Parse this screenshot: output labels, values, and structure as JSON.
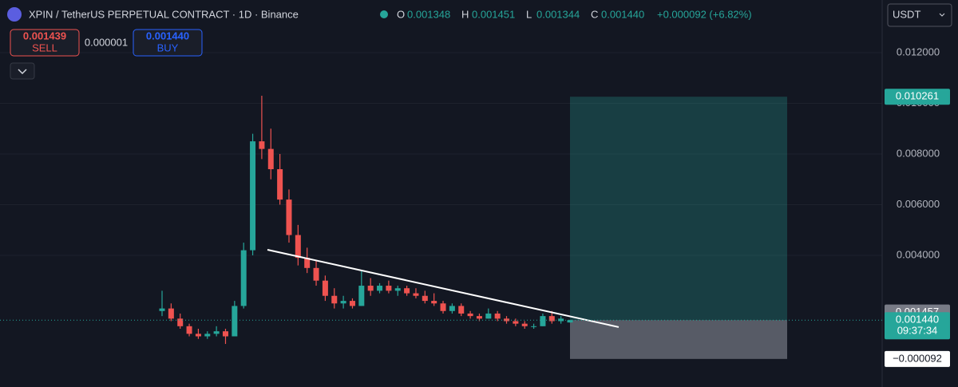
{
  "toolbar": {
    "title": "XPIN / TetherUS PERPETUAL CONTRACT · 1D · Binance",
    "ohlc": [
      {
        "key": "O",
        "value": "0.001348"
      },
      {
        "key": "H",
        "value": "0.001451"
      },
      {
        "key": "L",
        "value": "0.001344"
      },
      {
        "key": "C",
        "value": "0.001440"
      }
    ],
    "change": "+0.000092 (+6.82%)",
    "sell": {
      "price": "0.001439",
      "label": "SELL"
    },
    "spread": "0.000001",
    "buy": {
      "price": "0.001440",
      "label": "BUY"
    },
    "currency": "USDT"
  },
  "chart_data": {
    "type": "candlestick",
    "open": [
      0.0018,
      0.0019,
      0.0015,
      0.0012,
      0.0009,
      0.0008,
      0.0009,
      0.001,
      0.0008,
      0.002,
      0.0042,
      0.0085,
      0.0082,
      0.0074,
      0.0062,
      0.0048,
      0.0039,
      0.0035,
      0.003,
      0.0024,
      0.0021,
      0.0022,
      0.002,
      0.0028,
      0.0026,
      0.0028,
      0.0026,
      0.0027,
      0.0025,
      0.0024,
      0.0022,
      0.0021,
      0.0018,
      0.002,
      0.0017,
      0.0016,
      0.0015,
      0.0017,
      0.0015,
      0.0014,
      0.0013,
      0.0012,
      0.0012,
      0.0016,
      0.0014,
      0.001348
    ],
    "high": [
      0.0026,
      0.0021,
      0.0017,
      0.0013,
      0.0011,
      0.001,
      0.0012,
      0.0011,
      0.0022,
      0.0045,
      0.0088,
      0.0103,
      0.009,
      0.008,
      0.0066,
      0.0052,
      0.0043,
      0.0038,
      0.0032,
      0.0027,
      0.0024,
      0.0023,
      0.0034,
      0.0031,
      0.0029,
      0.003,
      0.0028,
      0.0028,
      0.0027,
      0.0026,
      0.0025,
      0.0022,
      0.0021,
      0.0021,
      0.0018,
      0.0017,
      0.0019,
      0.0018,
      0.0016,
      0.0015,
      0.0014,
      0.0013,
      0.0017,
      0.0018,
      0.0016,
      0.001451
    ],
    "low": [
      0.0016,
      0.0014,
      0.0011,
      0.0008,
      0.0007,
      0.0007,
      0.0008,
      0.0005,
      0.0008,
      0.0019,
      0.004,
      0.0078,
      0.007,
      0.006,
      0.0045,
      0.0036,
      0.0033,
      0.0028,
      0.0022,
      0.0019,
      0.0019,
      0.0019,
      0.002,
      0.0024,
      0.0025,
      0.0025,
      0.0024,
      0.0024,
      0.0023,
      0.0021,
      0.002,
      0.0017,
      0.0017,
      0.0016,
      0.0015,
      0.0014,
      0.0015,
      0.0014,
      0.0013,
      0.0012,
      0.0011,
      0.0011,
      0.0012,
      0.0013,
      0.0013,
      0.001344
    ],
    "close": [
      0.0019,
      0.0015,
      0.0012,
      0.0009,
      0.0008,
      0.0009,
      0.001,
      0.0008,
      0.002,
      0.0042,
      0.0085,
      0.0082,
      0.0074,
      0.0062,
      0.0048,
      0.0039,
      0.0035,
      0.003,
      0.0024,
      0.0021,
      0.0022,
      0.002,
      0.0028,
      0.0026,
      0.0028,
      0.0026,
      0.0027,
      0.0025,
      0.0024,
      0.0022,
      0.0021,
      0.0018,
      0.002,
      0.0017,
      0.0016,
      0.0015,
      0.0017,
      0.0015,
      0.0014,
      0.0013,
      0.0012,
      0.0012,
      0.0016,
      0.0014,
      0.0015,
      0.00144
    ],
    "up_color": "#26a69a",
    "down_color": "#ef5350",
    "ylim": [
      -0.0012,
      0.01408
    ],
    "yticks": [
      {
        "value": 0.004,
        "label": "0.004000"
      },
      {
        "value": 0.006,
        "label": "0.006000"
      },
      {
        "value": 0.008,
        "label": "0.008000"
      },
      {
        "value": 0.01,
        "label": "0.010000"
      },
      {
        "value": 0.012,
        "label": "0.012000"
      }
    ],
    "grid": true,
    "trendline": {
      "from": 0.00422,
      "to": 0.001165
    },
    "position": {
      "entry": 0.00144,
      "target": {
        "value": 0.010261,
        "label": "0.010261"
      },
      "stop": {
        "value": -9.2e-05,
        "label": "−0.000092"
      }
    },
    "marker": {
      "value": 0.001457,
      "label": "0.001457"
    },
    "last_price": {
      "value": 0.00144,
      "label": "0.001440"
    },
    "countdown": "09:37:34"
  }
}
